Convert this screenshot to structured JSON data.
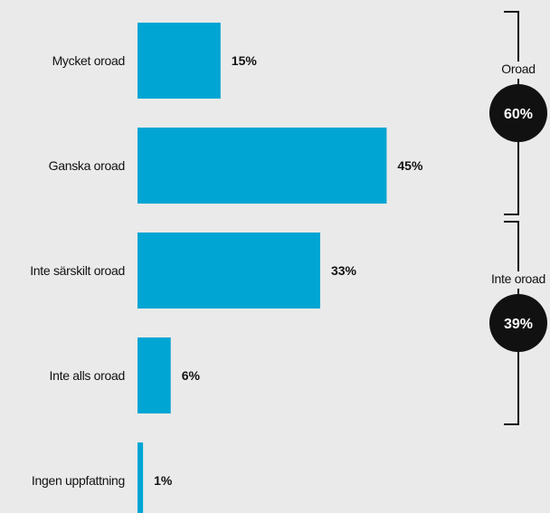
{
  "chart_data": {
    "type": "bar",
    "orientation": "horizontal",
    "categories": [
      "Mycket oroad",
      "Ganska oroad",
      "Inte särskilt oroad",
      "Inte alls oroad",
      "Ingen uppfattning"
    ],
    "values": [
      15,
      45,
      33,
      6,
      1
    ],
    "value_labels": [
      "15%",
      "45%",
      "33%",
      "6%",
      "1%"
    ],
    "unit": "%",
    "xlim": [
      0,
      100
    ],
    "bar_color": "#00a5d3",
    "grid": false,
    "groups": [
      {
        "label": "Oroad",
        "total_label": "60%",
        "total": 60,
        "categories": [
          "Mycket oroad",
          "Ganska oroad"
        ]
      },
      {
        "label": "Inte oroad",
        "total_label": "39%",
        "total": 39,
        "categories": [
          "Inte särskilt oroad",
          "Inte alls oroad"
        ]
      }
    ]
  }
}
